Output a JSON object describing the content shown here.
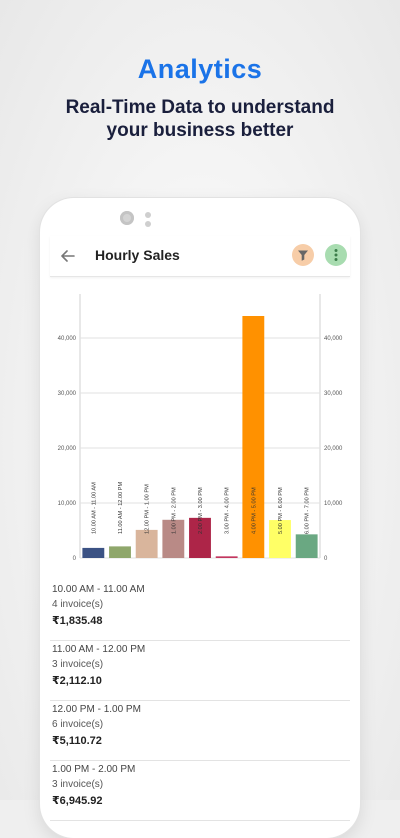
{
  "promo": {
    "title": "Analytics",
    "subtitle_line1": "Real-Time Data to understand",
    "subtitle_line2": "your business better"
  },
  "appbar": {
    "title": "Hourly Sales",
    "back_icon": "arrow-left-icon",
    "filter_icon": "filter-icon",
    "more_icon": "more-vertical-icon"
  },
  "colors": {
    "brand_blue": "#1a73e8",
    "filter_bg": "#f7cda8",
    "more_bg": "#a8dcb0"
  },
  "chart_data": {
    "type": "bar",
    "categories": [
      "10.00 AM - 11.00 AM",
      "11.00 AM - 12.00 PM",
      "12.00 PM - 1.00 PM",
      "1.00 PM - 2.00 PM",
      "2.00 PM - 3.00 PM",
      "3.00 PM - 4.00 PM",
      "4.00 PM - 5.00 PM",
      "5.00 PM - 6.00 PM",
      "6.00 PM - 7.00 PM"
    ],
    "values": [
      1835.48,
      2112.1,
      5110.72,
      6945.92,
      7300,
      300,
      44000,
      6900,
      4300
    ],
    "colors": [
      "#3b5284",
      "#8fa76b",
      "#d9b59c",
      "#b98a86",
      "#ad2548",
      "#c2365f",
      "#ff9100",
      "#ffff66",
      "#6aa882"
    ],
    "yticks": [
      "0",
      "10,000",
      "20,000",
      "30,000",
      "40,000"
    ],
    "ylim": [
      0,
      48000
    ],
    "grid": true
  },
  "list": [
    {
      "time": "10.00 AM - 11.00 AM",
      "invoices": "4 invoice(s)",
      "amount": "₹1,835.48"
    },
    {
      "time": "11.00 AM - 12.00 PM",
      "invoices": "3 invoice(s)",
      "amount": "₹2,112.10"
    },
    {
      "time": "12.00 PM - 1.00 PM",
      "invoices": "6 invoice(s)",
      "amount": "₹5,110.72"
    },
    {
      "time": "1.00 PM - 2.00 PM",
      "invoices": "3 invoice(s)",
      "amount": "₹6,945.92"
    }
  ]
}
